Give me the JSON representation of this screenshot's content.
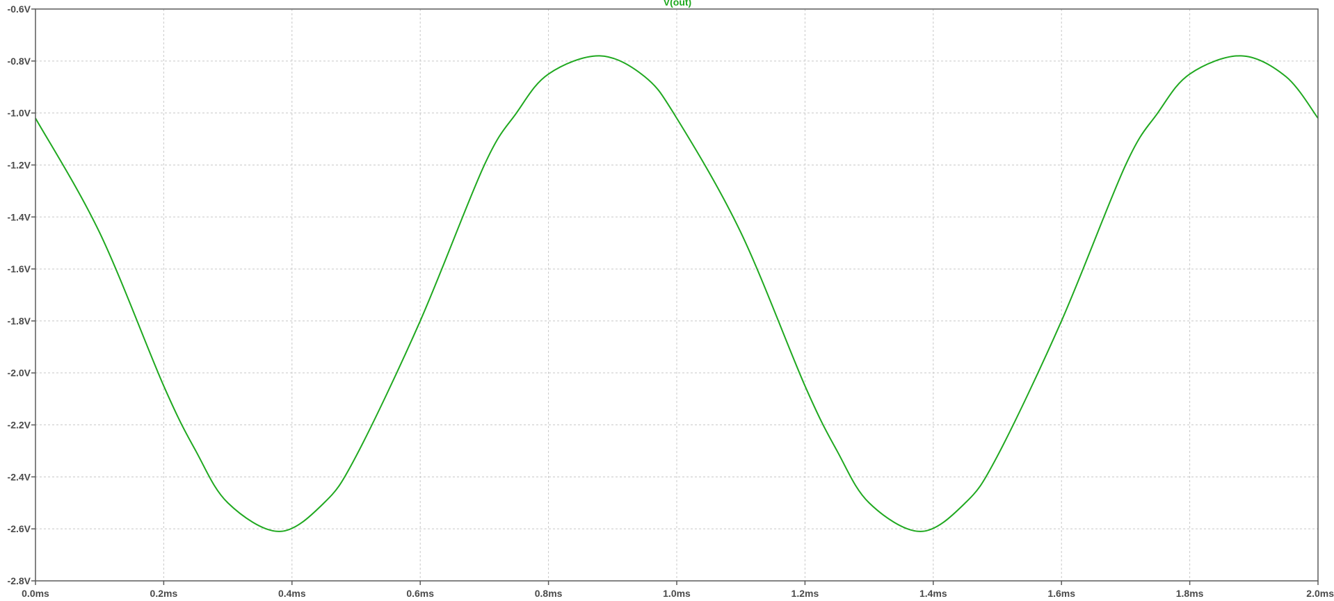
{
  "chart_data": {
    "type": "line",
    "title": "V(out)",
    "xlabel": "",
    "ylabel": "",
    "x_unit": "ms",
    "y_unit": "V",
    "xlim": [
      0.0,
      2.0
    ],
    "ylim": [
      -2.8,
      -0.6
    ],
    "x_ticks": [
      "0.0ms",
      "0.2ms",
      "0.4ms",
      "0.6ms",
      "0.8ms",
      "1.0ms",
      "1.2ms",
      "1.4ms",
      "1.6ms",
      "1.8ms",
      "2.0ms"
    ],
    "y_ticks": [
      "-0.6V",
      "-0.8V",
      "-1.0V",
      "-1.2V",
      "-1.4V",
      "-1.6V",
      "-1.8V",
      "-2.0V",
      "-2.2V",
      "-2.4V",
      "-2.6V",
      "-2.8V"
    ],
    "grid": true,
    "series": [
      {
        "name": "V(out)",
        "color": "#1fa81f",
        "x": [
          0.0,
          0.1,
          0.2,
          0.25,
          0.3,
          0.38,
          0.45,
          0.5,
          0.6,
          0.7,
          0.75,
          0.8,
          0.88,
          0.95,
          1.0,
          1.1,
          1.2,
          1.25,
          1.3,
          1.38,
          1.45,
          1.5,
          1.6,
          1.7,
          1.75,
          1.8,
          1.88,
          1.95,
          2.0
        ],
        "y": [
          -1.02,
          -1.46,
          -2.05,
          -2.3,
          -2.5,
          -2.61,
          -2.5,
          -2.32,
          -1.8,
          -1.2,
          -1.0,
          -0.85,
          -0.78,
          -0.86,
          -1.02,
          -1.46,
          -2.05,
          -2.3,
          -2.5,
          -2.61,
          -2.5,
          -2.32,
          -1.8,
          -1.2,
          -1.0,
          -0.85,
          -0.78,
          -0.86,
          -1.02
        ]
      }
    ]
  },
  "colors": {
    "trace": "#1fa81f",
    "axis_text": "#4a4a4a",
    "grid": "#c8c8c8"
  }
}
